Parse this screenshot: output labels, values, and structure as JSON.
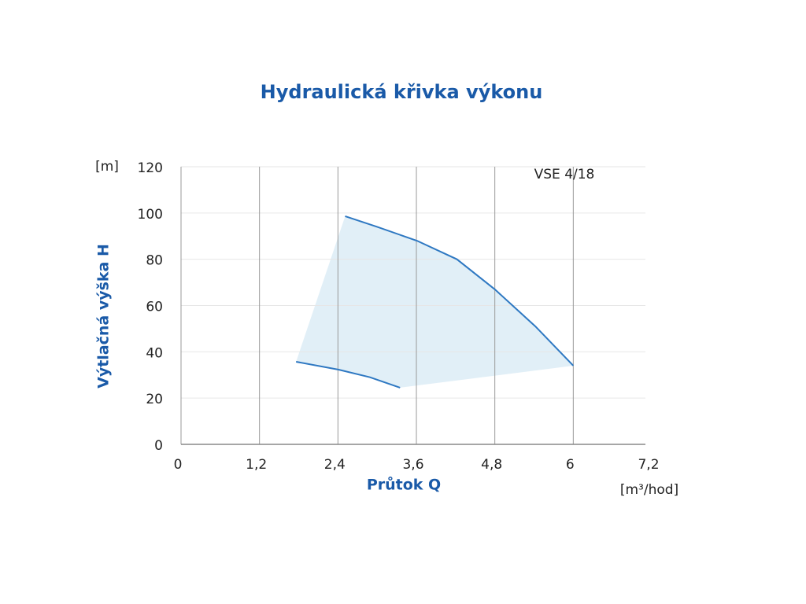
{
  "chart_data": {
    "type": "line",
    "title": "Hydraulická křivka výkonu",
    "x_label": "Průtok Q",
    "x_unit": "[m³/hod]",
    "y_label": "Výtlačná výška H",
    "y_unit": "[m]",
    "annotation": "VSE 4/18",
    "series": [
      {
        "color": "#2e78c2",
        "x": [
          2.51,
          3.0,
          3.61,
          4.22,
          4.8,
          5.42,
          6.0
        ],
        "values": [
          98.6,
          94,
          88,
          80,
          67,
          51,
          34
        ]
      },
      {
        "color": "#2e78c2",
        "x": [
          1.76,
          2.41,
          2.89,
          3.35
        ],
        "values": [
          35.7,
          32.3,
          29,
          24.5
        ]
      }
    ],
    "fill_color": "#d9ebf5",
    "xlim": [
      0,
      7.2
    ],
    "xticks": [
      0,
      {
        "value": 1.2,
        "label": "1,2"
      },
      {
        "value": 2.4,
        "label": "2,4"
      },
      {
        "value": 3.6,
        "label": "3,6"
      },
      {
        "value": 4.8,
        "label": "4,8"
      },
      6,
      {
        "value": 7.2,
        "label": "7,2"
      }
    ],
    "ylim": [
      0,
      120
    ],
    "yticks": [
      0,
      20,
      40,
      60,
      80,
      100,
      120
    ],
    "grid": true
  }
}
